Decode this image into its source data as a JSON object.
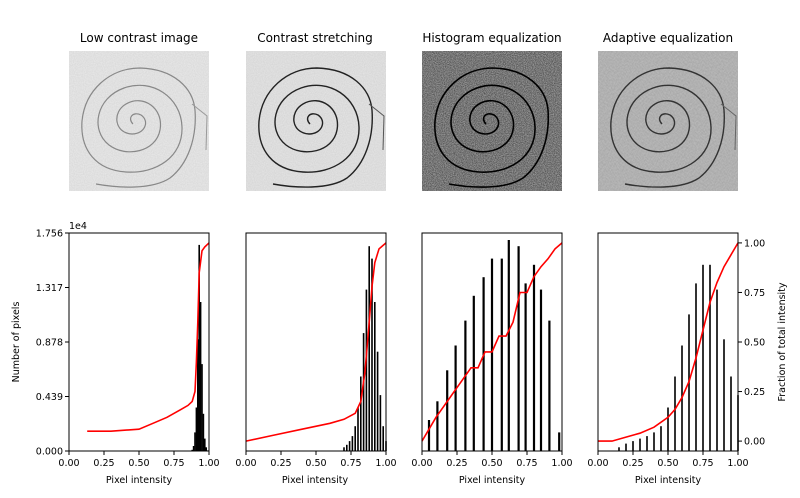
{
  "figure": {
    "ylabel_left": "Number of pixels",
    "ylabel_right": "Fraction of total intensity",
    "offset_label": "1e4"
  },
  "panels": [
    {
      "title": "Low contrast image",
      "xlabel": "Pixel intensity"
    },
    {
      "title": "Contrast stretching",
      "xlabel": "Pixel intensity"
    },
    {
      "title": "Histogram equalization",
      "xlabel": "Pixel intensity"
    },
    {
      "title": "Adaptive equalization",
      "xlabel": "Pixel intensity"
    }
  ],
  "colors": {
    "histogram": "#000000",
    "cdf": "#ff0000",
    "axis": "#000000"
  },
  "chart_data": [
    {
      "type": "bar",
      "title": "Low contrast image",
      "xlabel": "Pixel intensity",
      "ylabel": "Number of pixels",
      "y2label": "",
      "xlim": [
        0,
        1
      ],
      "ylim": [
        0,
        17560
      ],
      "y2lim": [
        -0.05,
        1.05
      ],
      "xticks": [
        "0.00",
        "0.25",
        "0.50",
        "0.75",
        "1.00"
      ],
      "yticks": [
        "0.000",
        "0.439",
        "0.878",
        "1.317",
        "1.756"
      ],
      "series": [
        {
          "name": "",
          "kind": "histogram",
          "x": [
            0.88,
            0.89,
            0.9,
            0.91,
            0.92,
            0.93,
            0.94,
            0.95,
            0.96,
            0.97,
            0.98,
            0.99
          ],
          "values": [
            100,
            400,
            1500,
            3500,
            9000,
            16600,
            12000,
            7000,
            3000,
            1000,
            300,
            50
          ]
        },
        {
          "name": "",
          "kind": "cdf",
          "x": [
            0.13,
            0.3,
            0.5,
            0.6,
            0.7,
            0.8,
            0.85,
            0.88,
            0.9,
            0.91,
            0.92,
            0.93,
            0.95,
            0.97,
            1.0
          ],
          "values": [
            0.05,
            0.05,
            0.06,
            0.09,
            0.12,
            0.16,
            0.18,
            0.2,
            0.25,
            0.4,
            0.6,
            0.85,
            0.96,
            0.98,
            1.0
          ]
        }
      ]
    },
    {
      "type": "bar",
      "title": "Contrast stretching",
      "xlabel": "Pixel intensity",
      "xlim": [
        0,
        1
      ],
      "ylim": [
        0,
        17560
      ],
      "xticks": [
        "0.00",
        "0.25",
        "0.50",
        "0.75",
        "1.00"
      ],
      "series": [
        {
          "name": "",
          "kind": "histogram",
          "x": [
            0.7,
            0.72,
            0.74,
            0.76,
            0.78,
            0.8,
            0.82,
            0.84,
            0.86,
            0.88,
            0.9,
            0.92,
            0.94,
            0.96,
            0.98,
            1.0
          ],
          "values": [
            300,
            500,
            800,
            1200,
            2000,
            3500,
            6000,
            9500,
            13000,
            16500,
            15500,
            12000,
            8000,
            4500,
            2000,
            800
          ]
        },
        {
          "name": "",
          "kind": "cdf",
          "x": [
            0.0,
            0.2,
            0.4,
            0.6,
            0.7,
            0.78,
            0.82,
            0.85,
            0.88,
            0.9,
            0.92,
            0.95,
            1.0
          ],
          "values": [
            0.0,
            0.03,
            0.06,
            0.09,
            0.11,
            0.14,
            0.2,
            0.35,
            0.6,
            0.78,
            0.9,
            0.97,
            1.0
          ]
        }
      ]
    },
    {
      "type": "bar",
      "title": "Histogram equalization",
      "xlabel": "Pixel intensity",
      "xlim": [
        0,
        1
      ],
      "ylim": [
        0,
        17560
      ],
      "xticks": [
        "0.00",
        "0.25",
        "0.50",
        "0.75",
        "1.00"
      ],
      "series": [
        {
          "name": "",
          "kind": "histogram",
          "x": [
            0.05,
            0.11,
            0.18,
            0.24,
            0.31,
            0.37,
            0.44,
            0.5,
            0.57,
            0.62,
            0.69,
            0.74,
            0.8,
            0.85,
            0.91,
            0.98
          ],
          "values": [
            2500,
            4000,
            6500,
            8500,
            10500,
            12500,
            14000,
            15500,
            15500,
            17000,
            16500,
            13500,
            15000,
            13000,
            10500,
            1500
          ]
        },
        {
          "name": "",
          "kind": "cdf",
          "x": [
            0.0,
            0.05,
            0.1,
            0.15,
            0.2,
            0.25,
            0.3,
            0.35,
            0.4,
            0.45,
            0.5,
            0.55,
            0.6,
            0.65,
            0.7,
            0.75,
            0.8,
            0.85,
            0.9,
            0.95,
            1.0
          ],
          "values": [
            0.0,
            0.06,
            0.12,
            0.17,
            0.22,
            0.27,
            0.32,
            0.37,
            0.37,
            0.45,
            0.45,
            0.53,
            0.53,
            0.6,
            0.75,
            0.75,
            0.83,
            0.88,
            0.92,
            0.97,
            1.0
          ]
        }
      ]
    },
    {
      "type": "line",
      "title": "Adaptive equalization",
      "xlabel": "Pixel intensity",
      "ylabel": "",
      "y2label": "Fraction of total intensity",
      "xlim": [
        0,
        1
      ],
      "ylim": [
        0,
        17560
      ],
      "y2lim": [
        -0.05,
        1.05
      ],
      "xticks": [
        "0.00",
        "0.25",
        "0.50",
        "0.75",
        "1.00"
      ],
      "y2ticks": [
        "0.00",
        "0.25",
        "0.50",
        "0.75",
        "1.00"
      ],
      "series": [
        {
          "name": "",
          "kind": "histogram",
          "x": [
            0.15,
            0.2,
            0.25,
            0.3,
            0.35,
            0.4,
            0.45,
            0.5,
            0.55,
            0.6,
            0.65,
            0.7,
            0.75,
            0.8,
            0.85,
            0.9,
            0.95,
            1.0
          ],
          "values": [
            300,
            600,
            800,
            1000,
            1200,
            1500,
            2000,
            3500,
            6000,
            8500,
            11000,
            13500,
            15000,
            15000,
            13000,
            9000,
            6000,
            4500
          ]
        },
        {
          "name": "",
          "kind": "cdf",
          "x": [
            0.0,
            0.1,
            0.2,
            0.3,
            0.4,
            0.5,
            0.55,
            0.6,
            0.65,
            0.7,
            0.75,
            0.8,
            0.85,
            0.9,
            0.95,
            1.0
          ],
          "values": [
            0.0,
            0.0,
            0.02,
            0.04,
            0.07,
            0.12,
            0.16,
            0.22,
            0.3,
            0.42,
            0.56,
            0.7,
            0.8,
            0.88,
            0.94,
            1.0
          ]
        }
      ]
    }
  ]
}
